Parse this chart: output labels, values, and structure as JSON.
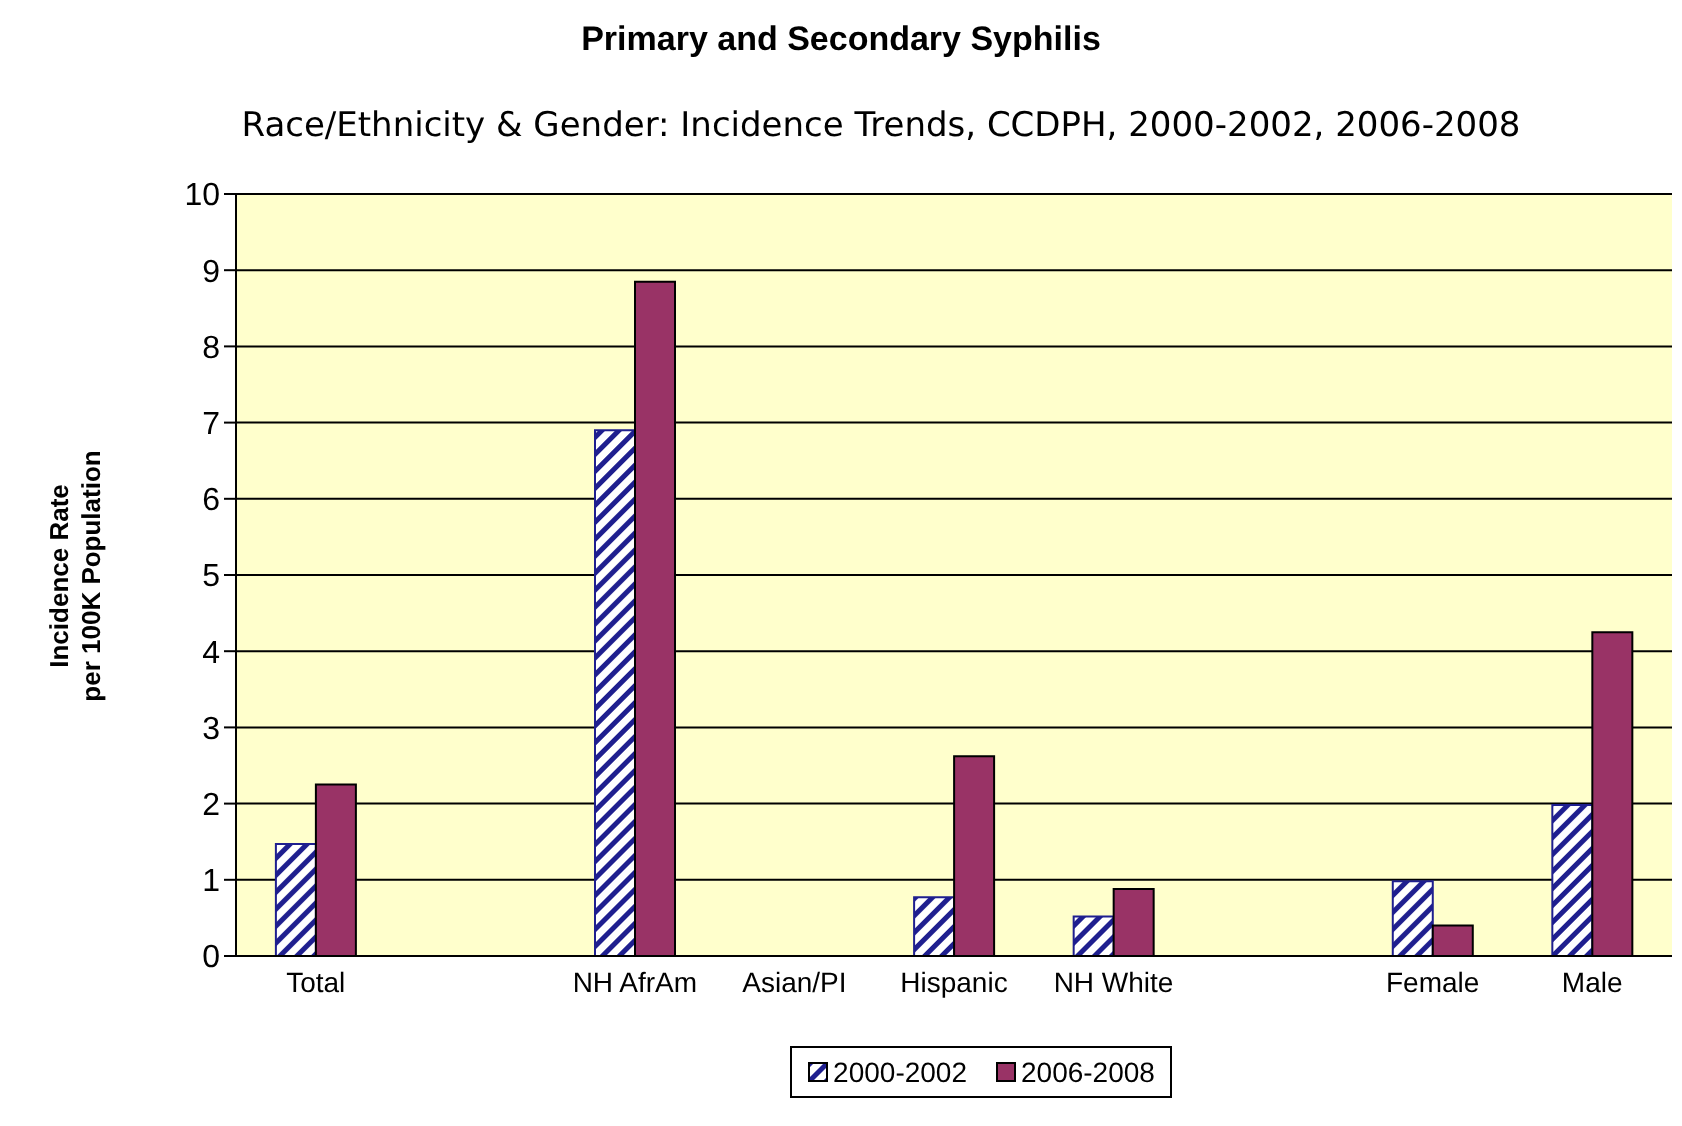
{
  "chart_data": {
    "type": "bar",
    "title": "Primary and Secondary Syphilis",
    "subtitle": "Race/Ethnicity & Gender: Incidence Trends, CCDPH, 2000-2002, 2006-2008",
    "ylabel": "Incidence Rate\nper 100K Population",
    "categories": [
      "Total",
      null,
      "NH AfrAm",
      "Asian/PI",
      "Hispanic",
      "NH White",
      null,
      "Female",
      "Male"
    ],
    "series": [
      {
        "name": "2000-2002",
        "color": "#1f1f8f",
        "values": [
          1.47,
          null,
          6.9,
          null,
          0.77,
          0.52,
          null,
          0.98,
          1.98
        ]
      },
      {
        "name": "2006-2008",
        "color": "#993366",
        "values": [
          2.25,
          null,
          8.85,
          null,
          2.62,
          0.88,
          null,
          0.4,
          4.25
        ]
      }
    ],
    "ylim": [
      0,
      10
    ],
    "yticks": [
      0,
      1,
      2,
      3,
      4,
      5,
      6,
      7,
      8,
      9,
      10
    ],
    "grid": "y",
    "legend": "bottom"
  }
}
